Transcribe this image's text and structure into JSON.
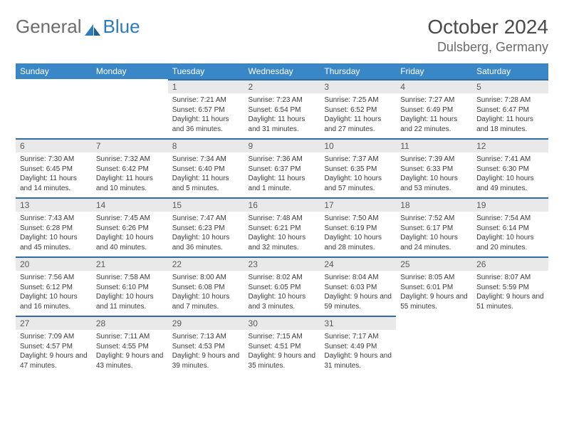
{
  "brand": {
    "word1": "General",
    "word2": "Blue"
  },
  "title": "October 2024",
  "location": "Dulsberg, Germany",
  "colors": {
    "header_bg": "#3a87c7",
    "header_text": "#ffffff",
    "daynum_bg": "#e9e9e9",
    "daynum_border": "#2f6ea3",
    "body_text": "#3a3a3a",
    "page_bg": "#ffffff"
  },
  "weekdays": [
    "Sunday",
    "Monday",
    "Tuesday",
    "Wednesday",
    "Thursday",
    "Friday",
    "Saturday"
  ],
  "grid": {
    "columns": 7,
    "rows": 5,
    "first_weekday_index": 2,
    "days_in_month": 31
  },
  "days": [
    {
      "n": 1,
      "sunrise": "7:21 AM",
      "sunset": "6:57 PM",
      "daylight": "11 hours and 36 minutes."
    },
    {
      "n": 2,
      "sunrise": "7:23 AM",
      "sunset": "6:54 PM",
      "daylight": "11 hours and 31 minutes."
    },
    {
      "n": 3,
      "sunrise": "7:25 AM",
      "sunset": "6:52 PM",
      "daylight": "11 hours and 27 minutes."
    },
    {
      "n": 4,
      "sunrise": "7:27 AM",
      "sunset": "6:49 PM",
      "daylight": "11 hours and 22 minutes."
    },
    {
      "n": 5,
      "sunrise": "7:28 AM",
      "sunset": "6:47 PM",
      "daylight": "11 hours and 18 minutes."
    },
    {
      "n": 6,
      "sunrise": "7:30 AM",
      "sunset": "6:45 PM",
      "daylight": "11 hours and 14 minutes."
    },
    {
      "n": 7,
      "sunrise": "7:32 AM",
      "sunset": "6:42 PM",
      "daylight": "11 hours and 10 minutes."
    },
    {
      "n": 8,
      "sunrise": "7:34 AM",
      "sunset": "6:40 PM",
      "daylight": "11 hours and 5 minutes."
    },
    {
      "n": 9,
      "sunrise": "7:36 AM",
      "sunset": "6:37 PM",
      "daylight": "11 hours and 1 minute."
    },
    {
      "n": 10,
      "sunrise": "7:37 AM",
      "sunset": "6:35 PM",
      "daylight": "10 hours and 57 minutes."
    },
    {
      "n": 11,
      "sunrise": "7:39 AM",
      "sunset": "6:33 PM",
      "daylight": "10 hours and 53 minutes."
    },
    {
      "n": 12,
      "sunrise": "7:41 AM",
      "sunset": "6:30 PM",
      "daylight": "10 hours and 49 minutes."
    },
    {
      "n": 13,
      "sunrise": "7:43 AM",
      "sunset": "6:28 PM",
      "daylight": "10 hours and 45 minutes."
    },
    {
      "n": 14,
      "sunrise": "7:45 AM",
      "sunset": "6:26 PM",
      "daylight": "10 hours and 40 minutes."
    },
    {
      "n": 15,
      "sunrise": "7:47 AM",
      "sunset": "6:23 PM",
      "daylight": "10 hours and 36 minutes."
    },
    {
      "n": 16,
      "sunrise": "7:48 AM",
      "sunset": "6:21 PM",
      "daylight": "10 hours and 32 minutes."
    },
    {
      "n": 17,
      "sunrise": "7:50 AM",
      "sunset": "6:19 PM",
      "daylight": "10 hours and 28 minutes."
    },
    {
      "n": 18,
      "sunrise": "7:52 AM",
      "sunset": "6:17 PM",
      "daylight": "10 hours and 24 minutes."
    },
    {
      "n": 19,
      "sunrise": "7:54 AM",
      "sunset": "6:14 PM",
      "daylight": "10 hours and 20 minutes."
    },
    {
      "n": 20,
      "sunrise": "7:56 AM",
      "sunset": "6:12 PM",
      "daylight": "10 hours and 16 minutes."
    },
    {
      "n": 21,
      "sunrise": "7:58 AM",
      "sunset": "6:10 PM",
      "daylight": "10 hours and 11 minutes."
    },
    {
      "n": 22,
      "sunrise": "8:00 AM",
      "sunset": "6:08 PM",
      "daylight": "10 hours and 7 minutes."
    },
    {
      "n": 23,
      "sunrise": "8:02 AM",
      "sunset": "6:05 PM",
      "daylight": "10 hours and 3 minutes."
    },
    {
      "n": 24,
      "sunrise": "8:04 AM",
      "sunset": "6:03 PM",
      "daylight": "9 hours and 59 minutes."
    },
    {
      "n": 25,
      "sunrise": "8:05 AM",
      "sunset": "6:01 PM",
      "daylight": "9 hours and 55 minutes."
    },
    {
      "n": 26,
      "sunrise": "8:07 AM",
      "sunset": "5:59 PM",
      "daylight": "9 hours and 51 minutes."
    },
    {
      "n": 27,
      "sunrise": "7:09 AM",
      "sunset": "4:57 PM",
      "daylight": "9 hours and 47 minutes."
    },
    {
      "n": 28,
      "sunrise": "7:11 AM",
      "sunset": "4:55 PM",
      "daylight": "9 hours and 43 minutes."
    },
    {
      "n": 29,
      "sunrise": "7:13 AM",
      "sunset": "4:53 PM",
      "daylight": "9 hours and 39 minutes."
    },
    {
      "n": 30,
      "sunrise": "7:15 AM",
      "sunset": "4:51 PM",
      "daylight": "9 hours and 35 minutes."
    },
    {
      "n": 31,
      "sunrise": "7:17 AM",
      "sunset": "4:49 PM",
      "daylight": "9 hours and 31 minutes."
    }
  ],
  "labels": {
    "sunrise": "Sunrise:",
    "sunset": "Sunset:",
    "daylight": "Daylight:"
  }
}
